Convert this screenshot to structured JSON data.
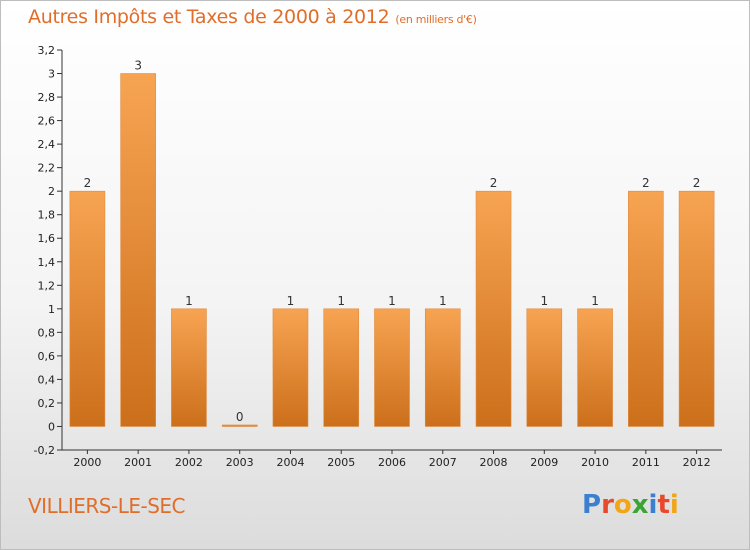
{
  "header": {
    "title": "Autres Impôts et Taxes de 2000 à 2012",
    "unit": "(en milliers d'€)"
  },
  "footer": {
    "commune": "VILLIERS-LE-SEC",
    "logo_letters": [
      "P",
      "r",
      "o",
      "x",
      "i",
      "t",
      "i"
    ],
    "logo_colors": [
      "#3a7fd0",
      "#e8492c",
      "#f2a516",
      "#3aa435",
      "#3a7fd0",
      "#e8492c",
      "#f2a516"
    ]
  },
  "colors": {
    "title": "#e06e2a",
    "bar_top": "#f7a452",
    "bar_bottom": "#cc6f1b"
  },
  "chart_data": {
    "type": "bar",
    "categories": [
      "2000",
      "2001",
      "2002",
      "2003",
      "2004",
      "2005",
      "2006",
      "2007",
      "2008",
      "2009",
      "2010",
      "2011",
      "2012"
    ],
    "values": [
      2,
      3,
      1,
      0,
      1,
      1,
      1,
      1,
      2,
      1,
      1,
      2,
      2
    ],
    "data_labels": [
      "2",
      "3",
      "1",
      "0",
      "1",
      "1",
      "1",
      "1",
      "2",
      "1",
      "1",
      "2",
      "2"
    ],
    "title": "Autres Impôts et Taxes de 2000 à 2012",
    "xlabel": "",
    "ylabel": "",
    "ylim": [
      -0.2,
      3.2
    ],
    "yticks": [
      -0.2,
      0,
      0.2,
      0.4,
      0.6,
      0.8,
      1,
      1.2,
      1.4,
      1.6,
      1.8,
      2,
      2.2,
      2.4,
      2.6,
      2.8,
      3,
      3.2
    ],
    "ytick_labels": [
      "-0,2",
      "0",
      "0,2",
      "0,4",
      "0,6",
      "0,8",
      "1",
      "1,2",
      "1,4",
      "1,6",
      "1,8",
      "2",
      "2,2",
      "2,4",
      "2,6",
      "2,8",
      "3",
      "3,2"
    ],
    "grid": false,
    "legend": "none"
  }
}
